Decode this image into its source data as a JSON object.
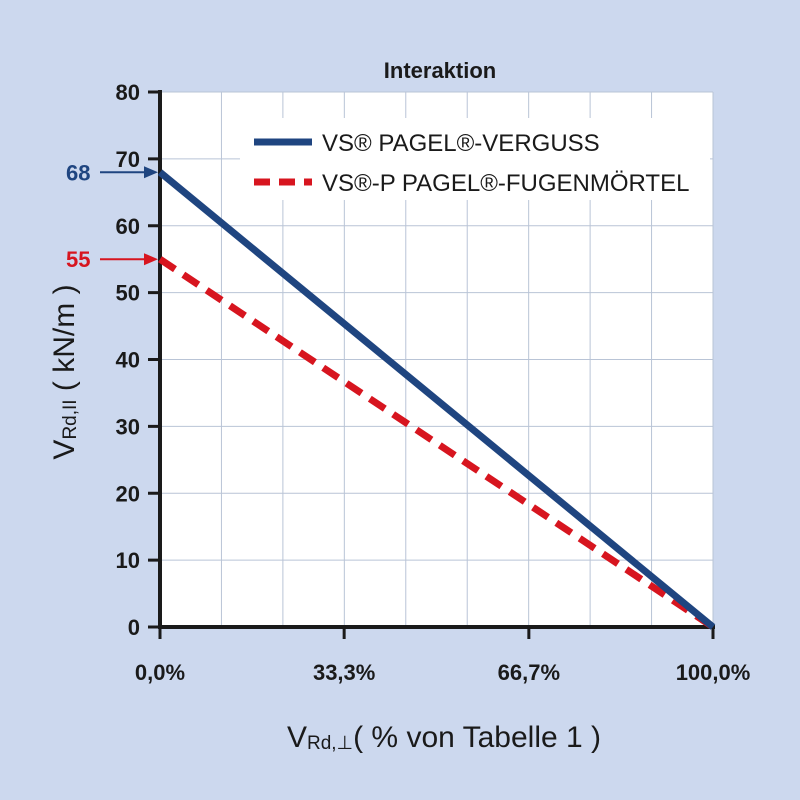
{
  "chart_data": {
    "type": "line",
    "title": "Interaktion",
    "xlabel": {
      "main": "V",
      "sub": "Rd,⊥",
      "rest": "( % von Tabelle 1 )"
    },
    "ylabel": {
      "main": "V",
      "sub": "Rd,II",
      "rest": " ( kN/m )"
    },
    "xlim": [
      0,
      100
    ],
    "ylim": [
      0,
      80
    ],
    "grid": true,
    "legend_position": "top-right",
    "x_ticks": [
      {
        "value": 0,
        "label": "0,0%"
      },
      {
        "value": 33.3,
        "label": "33,3%"
      },
      {
        "value": 66.7,
        "label": "66,7%"
      },
      {
        "value": 100,
        "label": "100,0%"
      }
    ],
    "y_ticks": [
      {
        "value": 0,
        "label": "0"
      },
      {
        "value": 10,
        "label": "10"
      },
      {
        "value": 20,
        "label": "20"
      },
      {
        "value": 30,
        "label": "30"
      },
      {
        "value": 40,
        "label": "40"
      },
      {
        "value": 50,
        "label": "50"
      },
      {
        "value": 60,
        "label": "60"
      },
      {
        "value": 70,
        "label": "70"
      },
      {
        "value": 80,
        "label": "80"
      }
    ],
    "series": [
      {
        "name": "VS® PAGEL®-VERGUSS",
        "style": "solid",
        "color": "#1f4580",
        "x": [
          0,
          100
        ],
        "y": [
          68,
          0
        ]
      },
      {
        "name": "VS®-P PAGEL®-FUGENMÖRTEL",
        "style": "dashed",
        "color": "#d7151f",
        "x": [
          0,
          100
        ],
        "y": [
          55,
          0
        ]
      }
    ],
    "annotations": [
      {
        "label": "68",
        "y": 68,
        "color": "#1f4580"
      },
      {
        "label": "55",
        "y": 55,
        "color": "#d7151f"
      }
    ]
  }
}
